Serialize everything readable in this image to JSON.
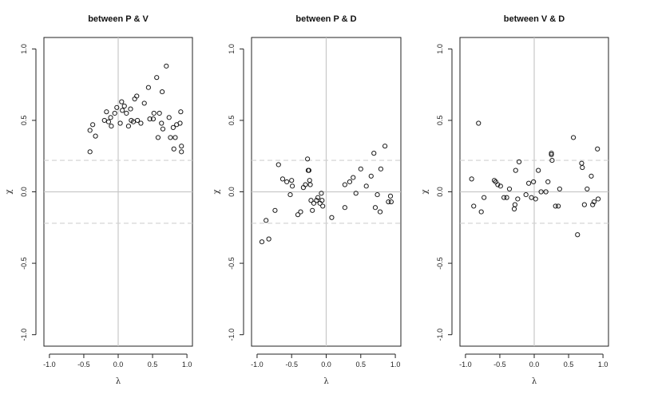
{
  "chart_data": [
    {
      "type": "scatter",
      "title": "between P & V",
      "xlabel": "λ",
      "ylabel": "χ",
      "xlim": [
        -1.0,
        1.0
      ],
      "ylim": [
        -1.0,
        1.0
      ],
      "x_ticks": [
        "-1.0",
        "-0.5",
        "0.0",
        "0.5",
        "1.0"
      ],
      "y_ticks": [
        "-1.0",
        "-0.5",
        "0.0",
        "0.5",
        "1.0"
      ],
      "reference_lines": {
        "vertical": 0.0,
        "horizontal": 0.0,
        "dashed_bounds": [
          0.22,
          -0.22
        ]
      },
      "grid": false,
      "points": [
        [
          -0.41,
          0.28
        ],
        [
          -0.41,
          0.43
        ],
        [
          -0.37,
          0.47
        ],
        [
          -0.33,
          0.39
        ],
        [
          -0.2,
          0.5
        ],
        [
          -0.17,
          0.56
        ],
        [
          -0.14,
          0.49
        ],
        [
          -0.11,
          0.52
        ],
        [
          -0.1,
          0.46
        ],
        [
          -0.05,
          0.55
        ],
        [
          -0.02,
          0.59
        ],
        [
          0.03,
          0.48
        ],
        [
          0.05,
          0.63
        ],
        [
          0.06,
          0.57
        ],
        [
          0.09,
          0.6
        ],
        [
          0.12,
          0.55
        ],
        [
          0.15,
          0.46
        ],
        [
          0.18,
          0.58
        ],
        [
          0.19,
          0.5
        ],
        [
          0.22,
          0.49
        ],
        [
          0.24,
          0.65
        ],
        [
          0.27,
          0.67
        ],
        [
          0.28,
          0.5
        ],
        [
          0.33,
          0.48
        ],
        [
          0.38,
          0.62
        ],
        [
          0.44,
          0.73
        ],
        [
          0.46,
          0.51
        ],
        [
          0.51,
          0.51
        ],
        [
          0.52,
          0.55
        ],
        [
          0.56,
          0.8
        ],
        [
          0.58,
          0.38
        ],
        [
          0.6,
          0.55
        ],
        [
          0.63,
          0.48
        ],
        [
          0.64,
          0.7
        ],
        [
          0.65,
          0.44
        ],
        [
          0.7,
          0.88
        ],
        [
          0.74,
          0.52
        ],
        [
          0.76,
          0.38
        ],
        [
          0.8,
          0.45
        ],
        [
          0.81,
          0.3
        ],
        [
          0.83,
          0.38
        ],
        [
          0.85,
          0.47
        ],
        [
          0.9,
          0.48
        ],
        [
          0.91,
          0.56
        ],
        [
          0.92,
          0.32
        ],
        [
          0.92,
          0.28
        ]
      ]
    },
    {
      "type": "scatter",
      "title": "between P & D",
      "xlabel": "λ",
      "ylabel": "χ",
      "xlim": [
        -1.0,
        1.0
      ],
      "ylim": [
        -1.0,
        1.0
      ],
      "x_ticks": [
        "-1.0",
        "-0.5",
        "0.0",
        "0.5",
        "1.0"
      ],
      "y_ticks": [
        "-1.0",
        "-0.5",
        "0.0",
        "0.5",
        "1.0"
      ],
      "reference_lines": {
        "vertical": 0.0,
        "horizontal": 0.0,
        "dashed_bounds": [
          0.22,
          -0.22
        ]
      },
      "grid": false,
      "points": [
        [
          -0.93,
          -0.35
        ],
        [
          -0.87,
          -0.2
        ],
        [
          -0.83,
          -0.33
        ],
        [
          -0.74,
          -0.13
        ],
        [
          -0.69,
          0.19
        ],
        [
          -0.63,
          0.09
        ],
        [
          -0.57,
          0.07
        ],
        [
          -0.52,
          -0.02
        ],
        [
          -0.5,
          0.08
        ],
        [
          -0.49,
          0.04
        ],
        [
          -0.41,
          -0.16
        ],
        [
          -0.37,
          -0.14
        ],
        [
          -0.33,
          0.03
        ],
        [
          -0.3,
          0.05
        ],
        [
          -0.27,
          0.23
        ],
        [
          -0.26,
          0.15
        ],
        [
          -0.25,
          0.15
        ],
        [
          -0.24,
          0.08
        ],
        [
          -0.23,
          0.05
        ],
        [
          -0.22,
          -0.06
        ],
        [
          -0.2,
          -0.13
        ],
        [
          -0.18,
          -0.08
        ],
        [
          -0.14,
          -0.06
        ],
        [
          -0.12,
          -0.04
        ],
        [
          -0.09,
          -0.08
        ],
        [
          -0.07,
          -0.01
        ],
        [
          -0.06,
          -0.06
        ],
        [
          -0.05,
          -0.1
        ],
        [
          0.08,
          -0.18
        ],
        [
          0.27,
          -0.11
        ],
        [
          0.27,
          0.05
        ],
        [
          0.34,
          0.07
        ],
        [
          0.39,
          0.1
        ],
        [
          0.43,
          -0.01
        ],
        [
          0.5,
          0.16
        ],
        [
          0.58,
          0.04
        ],
        [
          0.65,
          0.11
        ],
        [
          0.69,
          0.27
        ],
        [
          0.71,
          -0.11
        ],
        [
          0.74,
          -0.02
        ],
        [
          0.78,
          -0.14
        ],
        [
          0.79,
          0.16
        ],
        [
          0.85,
          0.32
        ],
        [
          0.9,
          -0.07
        ],
        [
          0.93,
          -0.03
        ],
        [
          0.94,
          -0.07
        ]
      ]
    },
    {
      "type": "scatter",
      "title": "between V & D",
      "xlabel": "λ",
      "ylabel": "χ",
      "xlim": [
        -1.0,
        1.0
      ],
      "ylim": [
        -1.0,
        1.0
      ],
      "x_ticks": [
        "-1.0",
        "-0.5",
        "0.0",
        "0.5",
        "1.0"
      ],
      "y_ticks": [
        "-1.0",
        "-0.5",
        "0.0",
        "0.5",
        "1.0"
      ],
      "reference_lines": {
        "vertical": 0.0,
        "horizontal": 0.0,
        "dashed_bounds": [
          0.22,
          -0.22
        ]
      },
      "grid": false,
      "points": [
        [
          -0.91,
          0.09
        ],
        [
          -0.88,
          -0.1
        ],
        [
          -0.81,
          0.48
        ],
        [
          -0.77,
          -0.14
        ],
        [
          -0.73,
          -0.04
        ],
        [
          -0.58,
          0.08
        ],
        [
          -0.56,
          0.07
        ],
        [
          -0.53,
          0.05
        ],
        [
          -0.49,
          0.04
        ],
        [
          -0.44,
          -0.04
        ],
        [
          -0.4,
          -0.04
        ],
        [
          -0.36,
          0.02
        ],
        [
          -0.29,
          -0.12
        ],
        [
          -0.28,
          -0.09
        ],
        [
          -0.27,
          0.15
        ],
        [
          -0.24,
          -0.05
        ],
        [
          -0.22,
          0.21
        ],
        [
          -0.12,
          -0.02
        ],
        [
          -0.08,
          0.06
        ],
        [
          -0.04,
          -0.04
        ],
        [
          -0.01,
          0.07
        ],
        [
          0.02,
          -0.05
        ],
        [
          0.06,
          0.15
        ],
        [
          0.1,
          0.0
        ],
        [
          0.17,
          0.0
        ],
        [
          0.2,
          0.07
        ],
        [
          0.25,
          0.26
        ],
        [
          0.25,
          0.27
        ],
        [
          0.26,
          0.22
        ],
        [
          0.31,
          -0.1
        ],
        [
          0.35,
          -0.1
        ],
        [
          0.37,
          0.02
        ],
        [
          0.57,
          0.38
        ],
        [
          0.63,
          -0.3
        ],
        [
          0.69,
          0.2
        ],
        [
          0.7,
          0.17
        ],
        [
          0.73,
          -0.09
        ],
        [
          0.77,
          0.02
        ],
        [
          0.83,
          0.11
        ],
        [
          0.85,
          -0.09
        ],
        [
          0.87,
          -0.07
        ],
        [
          0.92,
          0.3
        ],
        [
          0.93,
          -0.05
        ]
      ]
    }
  ]
}
